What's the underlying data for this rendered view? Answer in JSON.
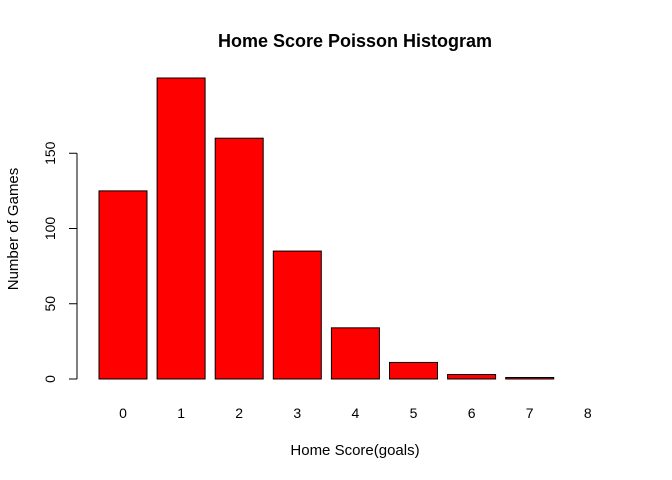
{
  "chart_data": {
    "type": "bar",
    "title": "Home Score Poisson Histogram",
    "xlabel": "Home Score(goals)",
    "ylabel": "Number of Games",
    "categories": [
      "0",
      "1",
      "2",
      "3",
      "4",
      "5",
      "6",
      "7",
      "8"
    ],
    "series": [
      {
        "values": [
          125,
          200,
          160,
          85,
          34,
          11,
          3,
          1,
          0
        ]
      }
    ],
    "ylim": [
      0,
      200
    ],
    "yticks": [
      0,
      50,
      100,
      150
    ],
    "grid": false,
    "legend": "none",
    "colors": {
      "bar_fill": "#ff0000",
      "bar_stroke": "#000000",
      "axis": "#000000"
    }
  }
}
